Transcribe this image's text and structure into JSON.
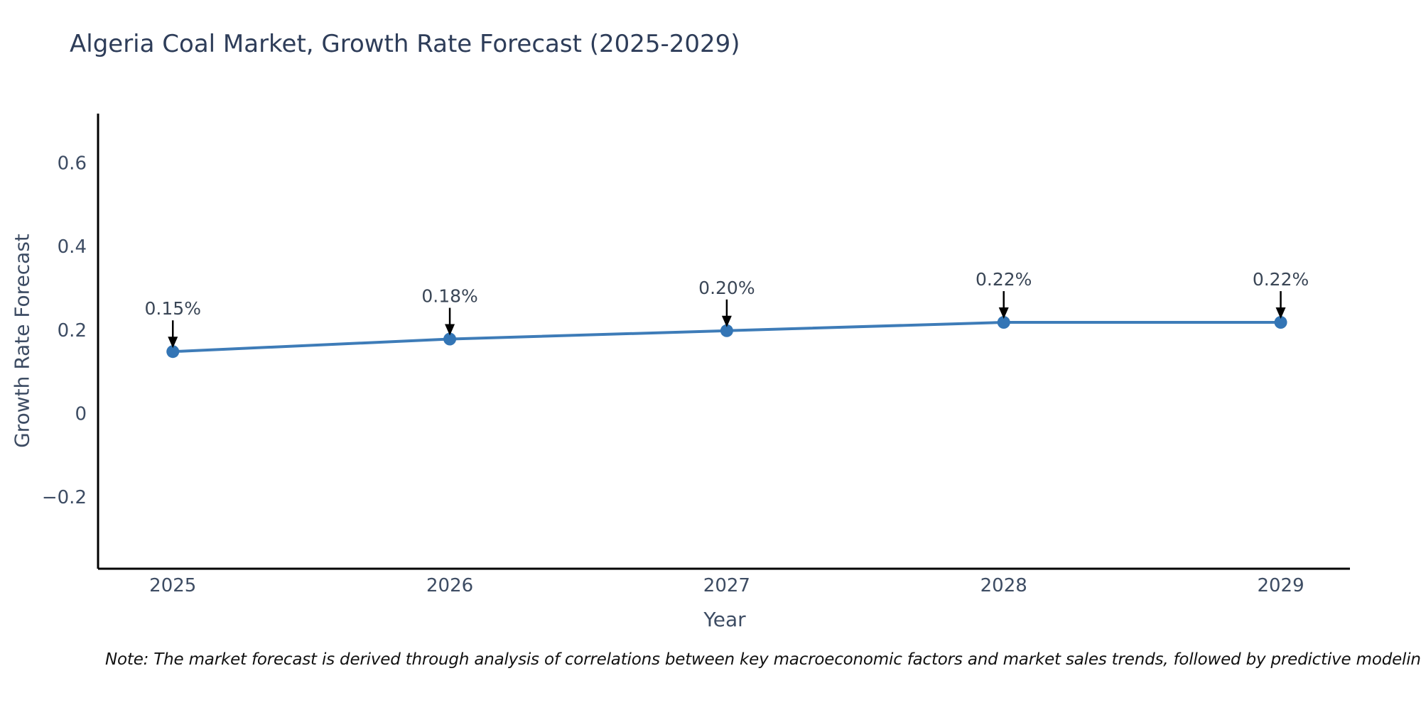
{
  "title": "Algeria Coal Market, Growth Rate Forecast (2025-2029)",
  "note": "Note: The market forecast is derived through analysis of correlations between key macroeconomic factors and market sales trends, followed by predictive modeling to project future sales.",
  "chart_data": {
    "type": "line",
    "title": "Algeria Coal Market, Growth Rate Forecast (2025-2029)",
    "xlabel": "Year",
    "ylabel": "Growth Rate Forecast",
    "x": [
      2025,
      2026,
      2027,
      2028,
      2029
    ],
    "values": [
      0.15,
      0.18,
      0.2,
      0.22,
      0.22
    ],
    "point_labels": [
      "0.15%",
      "0.18%",
      "0.20%",
      "0.22%",
      "0.22%"
    ],
    "series_name": "Growth Rate Forecast",
    "xticks": [
      {
        "value": 2025,
        "label": "2025"
      },
      {
        "value": 2026,
        "label": "2026"
      },
      {
        "value": 2027,
        "label": "2027"
      },
      {
        "value": 2028,
        "label": "2028"
      },
      {
        "value": 2029,
        "label": "2029"
      }
    ],
    "yticks": [
      {
        "value": -0.2,
        "label": "−0.2"
      },
      {
        "value": 0,
        "label": "0"
      },
      {
        "value": 0.2,
        "label": "0.2"
      },
      {
        "value": 0.4,
        "label": "0.4"
      },
      {
        "value": 0.6,
        "label": "0.6"
      }
    ],
    "xlim": [
      2024.73,
      2029.25
    ],
    "ylim": [
      -0.37,
      0.72
    ],
    "grid": false,
    "legend": "none",
    "annotation_style": "value label with downward arrow to each point"
  },
  "colors": {
    "background": "#ffffff",
    "title": "#2e3d59",
    "tick": "#3d4c63",
    "axis": "#000000",
    "line": "#3e7cb8",
    "marker": "#3375b5",
    "arrow": "#000000",
    "annotation": "#3a4656",
    "note": "#111111"
  }
}
